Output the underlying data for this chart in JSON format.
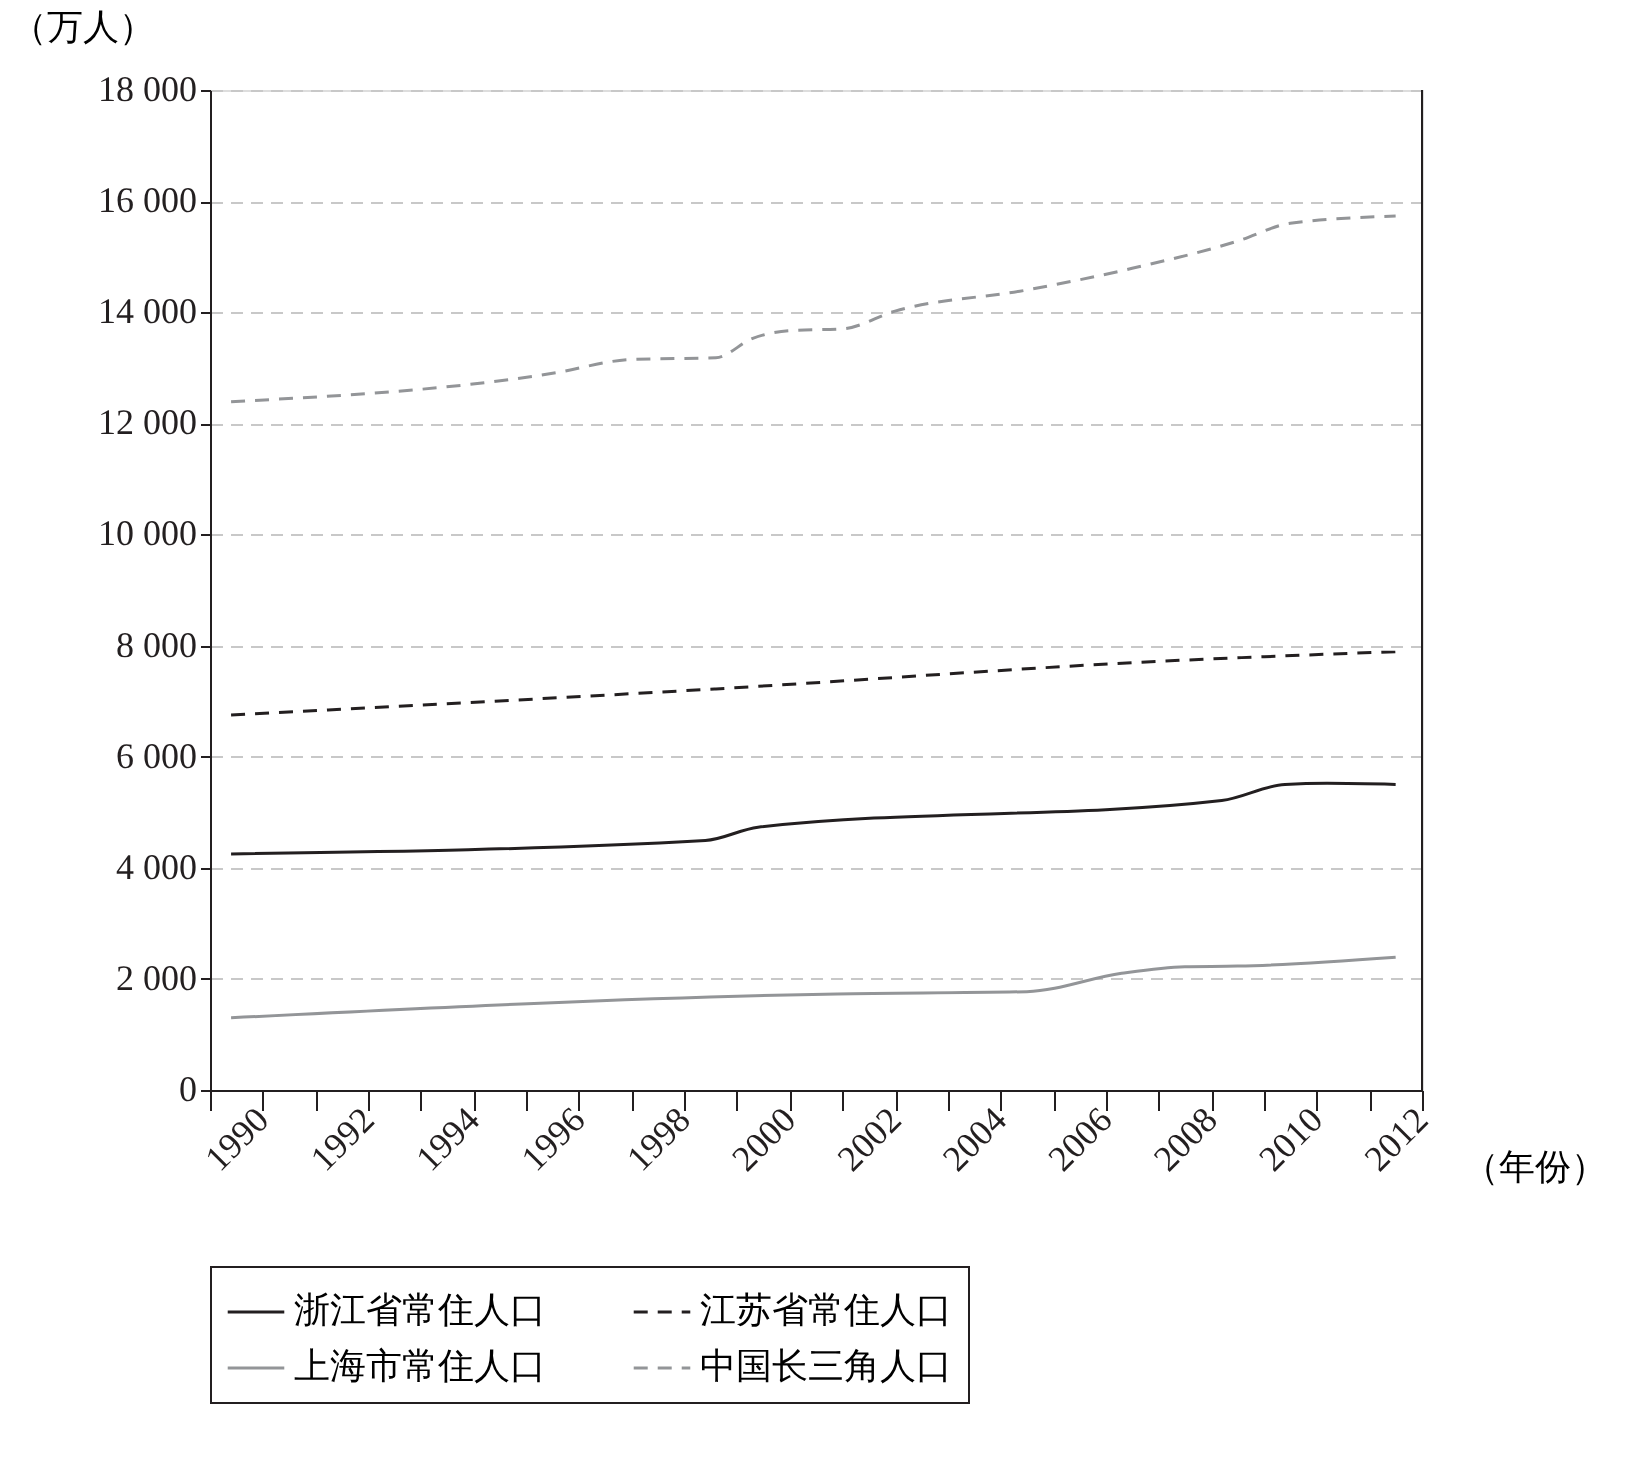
{
  "chart_data": {
    "type": "line",
    "ylabel": "（万人）",
    "xlabel": "（年份）",
    "xlim": [
      1989,
      2012
    ],
    "xticks": [
      {
        "value": 1989,
        "label": null
      },
      1990,
      {
        "value": 1991,
        "label": null
      },
      1992,
      {
        "value": 1993,
        "label": null
      },
      1994,
      {
        "value": 1995,
        "label": null
      },
      1996,
      {
        "value": 1997,
        "label": null
      },
      1998,
      {
        "value": 1999,
        "label": null
      },
      2000,
      {
        "value": 2001,
        "label": null
      },
      2002,
      {
        "value": 2003,
        "label": null
      },
      2004,
      {
        "value": 2005,
        "label": null
      },
      2006,
      {
        "value": 2007,
        "label": null
      },
      2008,
      {
        "value": 2009,
        "label": null
      },
      2010,
      {
        "value": 2011,
        "label": null
      },
      2012
    ],
    "ylim": [
      0,
      18000
    ],
    "yticks": [
      0,
      {
        "value": 2000,
        "label": "2 000"
      },
      {
        "value": 4000,
        "label": "4 000"
      },
      {
        "value": 6000,
        "label": "6 000"
      },
      {
        "value": 8000,
        "label": "8 000"
      },
      {
        "value": 10000,
        "label": "10 000"
      },
      {
        "value": 12000,
        "label": "12 000"
      },
      {
        "value": 14000,
        "label": "14 000"
      },
      {
        "value": 16000,
        "label": "16 000"
      },
      {
        "value": 18000,
        "label": "18 000"
      }
    ],
    "grid": "y",
    "legend": "bottom",
    "series": [
      {
        "name": "浙江省常住人口",
        "color": "#231f20",
        "line_style": "solid",
        "x": [
          1989.4,
          1998.4,
          1999.4,
          2008.2,
          2009.4,
          2010.2,
          2011.5
        ],
        "values": [
          4250,
          4490,
          4730,
          5210,
          5500,
          5520,
          5500
        ]
      },
      {
        "name": "江苏省常住人口",
        "color": "#231f20",
        "line_style": "dashed",
        "x": [
          1989.4,
          1998.6,
          2007.1,
          2011.5
        ],
        "values": [
          6750,
          7220,
          7720,
          7890
        ]
      },
      {
        "name": "上海市常住人口",
        "color": "#939598",
        "line_style": "solid",
        "x": [
          1989.4,
          2000.9,
          2004.5,
          2006.3,
          2007.5,
          2008.5,
          2011.5
        ],
        "values": [
          1300,
          1730,
          1770,
          2100,
          2220,
          2230,
          2390
        ]
      },
      {
        "name": "中国长三角人口",
        "color": "#939598",
        "line_style": "dashed",
        "x": [
          1989.4,
          1995.5,
          1997,
          1998.6,
          1999.3,
          2000,
          2001,
          2002,
          2004.5,
          2006.5,
          2008.5,
          2009.5,
          2011.5
        ],
        "values": [
          12390,
          12900,
          13150,
          13180,
          13530,
          13670,
          13700,
          14020,
          14400,
          14790,
          15280,
          15600,
          15730
        ]
      }
    ]
  }
}
